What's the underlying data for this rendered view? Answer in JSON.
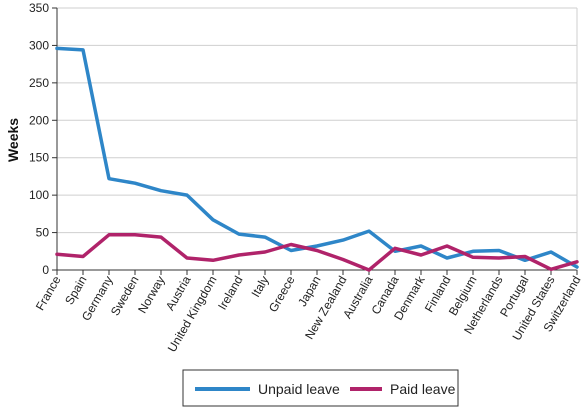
{
  "chart_data": {
    "type": "line",
    "ylabel": "Weeks",
    "xlabel": "",
    "ylim": [
      0,
      350
    ],
    "yticks": [
      "0",
      "50",
      "100",
      "150",
      "200",
      "250",
      "300",
      "350"
    ],
    "grid": true,
    "legend_placement": "bottom",
    "categories": [
      "France",
      "Spain",
      "Germany",
      "Sweden",
      "Norway",
      "Austria",
      "United Kingdom",
      "Ireland",
      "Italy",
      "Greece",
      "Japan",
      "New Zealand",
      "Australia",
      "Canada",
      "Denmark",
      "Finland",
      "Belgium",
      "Netherlands",
      "Portugal",
      "United States",
      "Switzerland"
    ],
    "series": [
      {
        "name": "Unpaid leave",
        "color": "#2E86C8",
        "values": [
          296,
          294,
          122,
          116,
          106,
          100,
          67,
          48,
          44,
          26,
          32,
          40,
          52,
          25,
          32,
          16,
          25,
          26,
          13,
          24,
          4
        ]
      },
      {
        "name": "Paid leave",
        "color": "#B0236A",
        "values": [
          21,
          18,
          47,
          47,
          44,
          16,
          13,
          20,
          24,
          34,
          26,
          14,
          0,
          29,
          20,
          32,
          17,
          16,
          18,
          1,
          11
        ]
      }
    ]
  }
}
